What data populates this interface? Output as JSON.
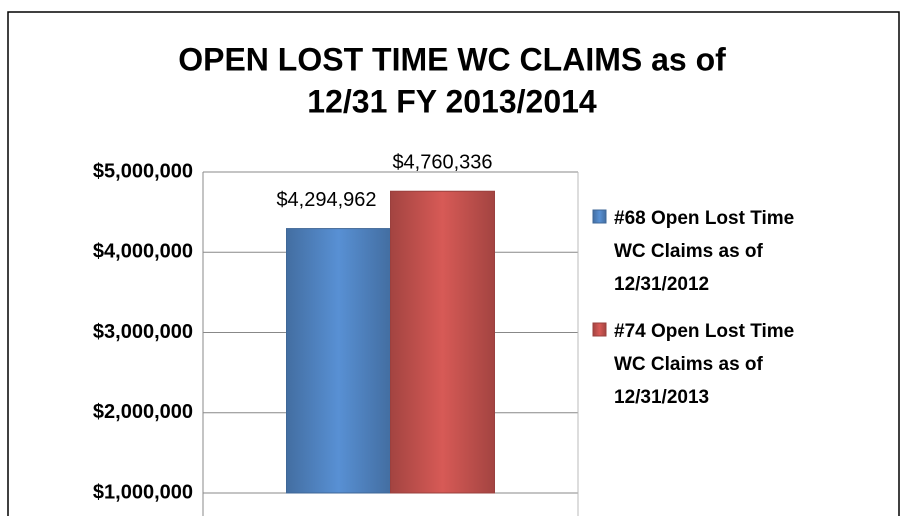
{
  "chart_data": {
    "type": "bar",
    "title": [
      "OPEN LOST TIME WC CLAIMS as of",
      "12/31 FY 2013/2014"
    ],
    "categories": [
      null
    ],
    "series": [
      {
        "name": "#68 Open Lost Time WC Claims as of 12/31/2012",
        "color": "#4f81bd",
        "values": [
          4294962
        ],
        "value_labels": [
          "$4,294,962"
        ]
      },
      {
        "name": "#74 Open Lost Time WC Claims as of 12/31/2013",
        "color": "#c0504d",
        "values": [
          4760336
        ],
        "value_labels": [
          "$4,760,336"
        ]
      }
    ],
    "ylim": [
      1000000,
      5000000
    ],
    "yticks": [
      {
        "value": 1000000,
        "label": "$1,000,000"
      },
      {
        "value": 2000000,
        "label": "$2,000,000"
      },
      {
        "value": 3000000,
        "label": "$3,000,000"
      },
      {
        "value": 4000000,
        "label": "$4,000,000"
      },
      {
        "value": 5000000,
        "label": "$5,000,000"
      }
    ],
    "grid": true,
    "legend": "right"
  }
}
